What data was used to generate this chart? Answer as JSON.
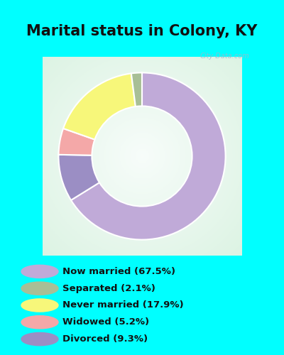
{
  "title": "Marital status in Colony, KY",
  "slices": [
    67.5,
    9.3,
    5.2,
    17.9,
    2.1
  ],
  "colors": [
    "#c0aad8",
    "#9b8ec4",
    "#f4a8a8",
    "#f7f77a",
    "#a8bf96"
  ],
  "legend_labels": [
    "Now married (67.5%)",
    "Separated (2.1%)",
    "Never married (17.9%)",
    "Widowed (5.2%)",
    "Divorced (9.3%)"
  ],
  "legend_colors": [
    "#c0aad8",
    "#a8bf96",
    "#f7f77a",
    "#f4a8a8",
    "#9b8ec4"
  ],
  "title_fontsize": 15,
  "watermark": "City-Data.com",
  "fig_bg": "#00ffff",
  "chart_bg_colors": [
    "#c8ecd8",
    "#e8f8f0"
  ],
  "legend_bg": "#00ffff"
}
